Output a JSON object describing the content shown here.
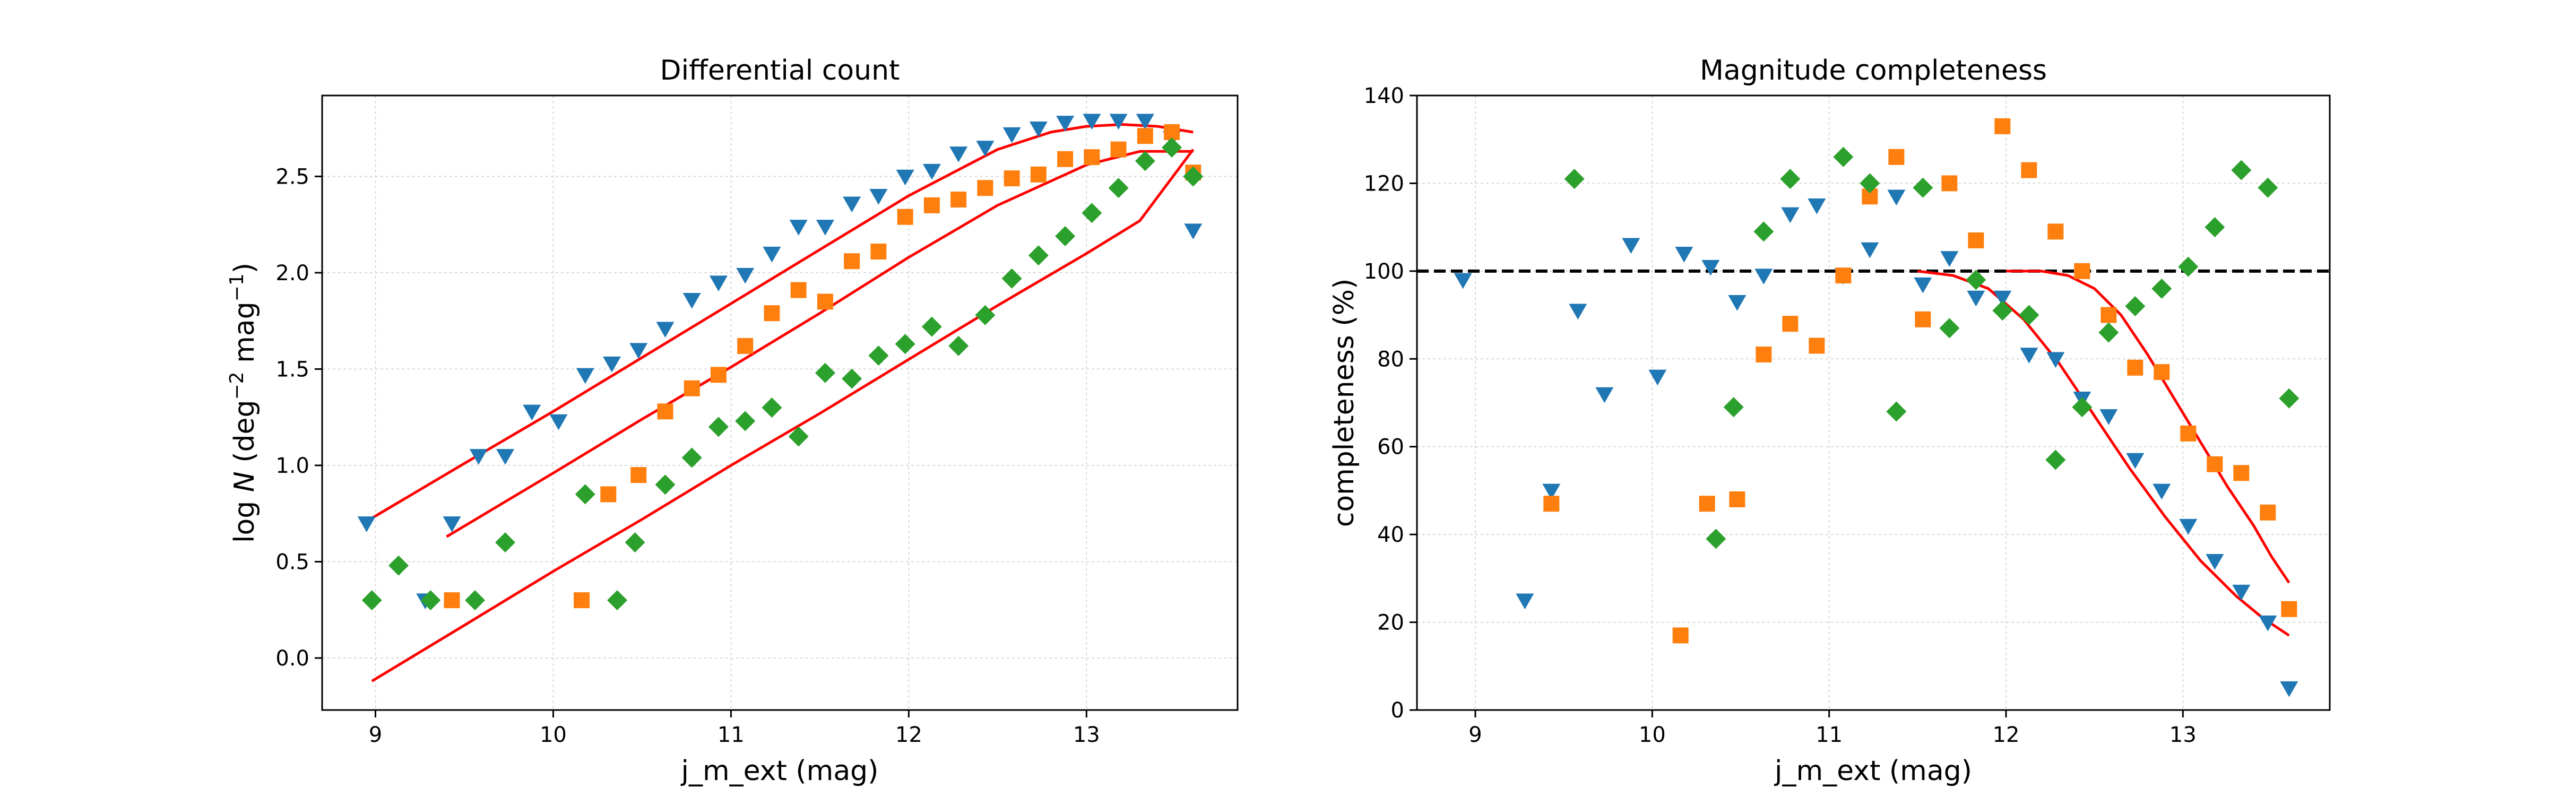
{
  "colors": {
    "series_blue": "#1f77b4",
    "series_orange": "#ff7f0e",
    "series_green": "#2ca02c",
    "fit": "#ff0000",
    "reference_line": "#000000",
    "grid": "#d9d9d9"
  },
  "chart_data": [
    {
      "type": "scatter",
      "title": "Differential count",
      "xlabel": "j_m_ext (mag)",
      "ylabel_parts": {
        "prefix": "log ",
        "var": "N",
        "open": " (deg",
        "exp1": "−2",
        "mid": " mag",
        "exp2": "−1",
        "close": ")"
      },
      "xlim": [
        8.7,
        13.85
      ],
      "ylim": [
        -0.27,
        2.92
      ],
      "xticks": [
        9,
        10,
        11,
        12,
        13
      ],
      "yticks": [
        0.0,
        0.5,
        1.0,
        1.5,
        2.0,
        2.5
      ],
      "ytick_labels": [
        "0.0",
        "0.5",
        "1.0",
        "1.5",
        "2.0",
        "2.5"
      ],
      "grid": true,
      "series": [
        {
          "marker": "triangle-down",
          "color": "#1f77b4",
          "x": [
            8.95,
            9.28,
            9.43,
            9.58,
            9.73,
            9.88,
            10.03,
            10.18,
            10.33,
            10.48,
            10.63,
            10.78,
            10.93,
            11.08,
            11.23,
            11.38,
            11.53,
            11.68,
            11.83,
            11.98,
            12.13,
            12.28,
            12.43,
            12.58,
            12.73,
            12.88,
            13.03,
            13.18,
            13.33,
            13.48,
            13.6
          ],
          "y": [
            0.7,
            0.3,
            0.7,
            1.05,
            1.05,
            1.28,
            1.23,
            1.47,
            1.53,
            1.6,
            1.71,
            1.86,
            1.95,
            1.99,
            2.1,
            2.24,
            2.24,
            2.36,
            2.4,
            2.5,
            2.53,
            2.62,
            2.65,
            2.72,
            2.75,
            2.78,
            2.79,
            2.79,
            2.79,
            2.7,
            2.22
          ]
        },
        {
          "marker": "square",
          "color": "#ff7f0e",
          "x": [
            9.43,
            10.16,
            10.31,
            10.48,
            10.63,
            10.78,
            10.93,
            11.08,
            11.23,
            11.38,
            11.53,
            11.68,
            11.83,
            11.98,
            12.13,
            12.28,
            12.43,
            12.58,
            12.73,
            12.88,
            13.03,
            13.18,
            13.33,
            13.48,
            13.6
          ],
          "y": [
            0.3,
            0.3,
            0.85,
            0.95,
            1.28,
            1.4,
            1.47,
            1.62,
            1.79,
            1.91,
            1.85,
            2.06,
            2.11,
            2.29,
            2.35,
            2.38,
            2.44,
            2.49,
            2.51,
            2.59,
            2.6,
            2.64,
            2.71,
            2.73,
            2.52
          ]
        },
        {
          "marker": "diamond",
          "color": "#2ca02c",
          "x": [
            8.98,
            9.13,
            9.31,
            9.56,
            9.73,
            10.18,
            10.36,
            10.46,
            10.63,
            10.78,
            10.93,
            11.08,
            11.23,
            11.38,
            11.53,
            11.68,
            11.83,
            11.98,
            12.13,
            12.28,
            12.43,
            12.58,
            12.73,
            12.88,
            13.03,
            13.18,
            13.33,
            13.48,
            13.6
          ],
          "y": [
            0.3,
            0.48,
            0.3,
            0.3,
            0.6,
            0.85,
            0.3,
            0.6,
            0.9,
            1.04,
            1.2,
            1.23,
            1.3,
            1.15,
            1.48,
            1.45,
            1.57,
            1.63,
            1.72,
            1.62,
            1.78,
            1.97,
            2.09,
            2.19,
            2.31,
            2.44,
            2.58,
            2.65,
            2.5
          ]
        }
      ],
      "fit_curves": [
        {
          "color": "#ff0000",
          "x": [
            8.95,
            9.5,
            10.0,
            10.5,
            11.0,
            11.5,
            12.0,
            12.5,
            12.8,
            13.0,
            13.2,
            13.4,
            13.6
          ],
          "y": [
            0.71,
            1.01,
            1.28,
            1.56,
            1.84,
            2.12,
            2.4,
            2.64,
            2.73,
            2.76,
            2.77,
            2.76,
            2.73
          ]
        },
        {
          "color": "#ff0000",
          "x": [
            9.4,
            10.0,
            10.5,
            11.0,
            11.5,
            12.0,
            12.5,
            13.0,
            13.3,
            13.6
          ],
          "y": [
            0.63,
            0.96,
            1.24,
            1.51,
            1.79,
            2.08,
            2.35,
            2.56,
            2.63,
            2.63
          ]
        },
        {
          "color": "#ff0000",
          "x": [
            8.98,
            9.5,
            10.0,
            10.5,
            11.0,
            11.5,
            12.0,
            12.5,
            13.0,
            13.3,
            13.6
          ],
          "y": [
            -0.12,
            0.17,
            0.45,
            0.72,
            1.0,
            1.27,
            1.55,
            1.83,
            2.1,
            2.27,
            2.64
          ]
        }
      ]
    },
    {
      "type": "scatter",
      "title": "Magnitude completeness",
      "xlabel": "j_m_ext (mag)",
      "ylabel": "completeness (%)",
      "xlim": [
        8.67,
        13.83
      ],
      "ylim": [
        0,
        140
      ],
      "xticks": [
        9,
        10,
        11,
        12,
        13
      ],
      "yticks": [
        0,
        20,
        40,
        60,
        80,
        100,
        120,
        140
      ],
      "reference_line_y": 100,
      "grid": true,
      "series": [
        {
          "marker": "triangle-down",
          "color": "#1f77b4",
          "x": [
            8.93,
            9.28,
            9.43,
            9.58,
            9.73,
            9.88,
            10.03,
            10.18,
            10.33,
            10.48,
            10.63,
            10.78,
            10.93,
            11.08,
            11.23,
            11.38,
            11.53,
            11.68,
            11.83,
            11.98,
            12.13,
            12.28,
            12.43,
            12.58,
            12.73,
            12.88,
            13.03,
            13.18,
            13.33,
            13.48,
            13.6
          ],
          "y": [
            98,
            25,
            50,
            91,
            72,
            106,
            76,
            104,
            101,
            93,
            99,
            113,
            115,
            99,
            105,
            117,
            97,
            103,
            94,
            94,
            81,
            80,
            71,
            67,
            57,
            50,
            42,
            34,
            27,
            20,
            5
          ]
        },
        {
          "marker": "square",
          "color": "#ff7f0e",
          "x": [
            9.43,
            10.16,
            10.31,
            10.48,
            10.63,
            10.78,
            10.93,
            11.08,
            11.23,
            11.38,
            11.53,
            11.68,
            11.83,
            11.98,
            12.13,
            12.28,
            12.43,
            12.58,
            12.73,
            12.88,
            13.03,
            13.18,
            13.33,
            13.48,
            13.6
          ],
          "y": [
            47,
            17,
            47,
            48,
            81,
            88,
            83,
            99,
            117,
            126,
            89,
            120,
            107,
            133,
            123,
            109,
            100,
            90,
            78,
            77,
            63,
            56,
            54,
            45,
            23
          ]
        },
        {
          "marker": "diamond",
          "color": "#2ca02c",
          "x": [
            9.56,
            10.36,
            10.46,
            10.63,
            10.78,
            11.08,
            11.23,
            11.38,
            11.53,
            11.68,
            11.83,
            11.98,
            12.13,
            12.28,
            12.43,
            12.58,
            12.73,
            12.88,
            13.03,
            13.18,
            13.33,
            13.48,
            13.6
          ],
          "y": [
            121,
            39,
            69,
            109,
            121,
            126,
            120,
            68,
            119,
            87,
            98,
            91,
            90,
            57,
            69,
            86,
            92,
            96,
            101,
            110,
            123,
            119,
            71
          ]
        }
      ],
      "fit_curves": [
        {
          "color": "#ff0000",
          "x": [
            11.5,
            11.7,
            11.9,
            12.1,
            12.3,
            12.5,
            12.7,
            12.9,
            13.1,
            13.3,
            13.45,
            13.6
          ],
          "y": [
            100,
            99,
            96,
            89,
            79,
            67,
            55,
            44,
            34,
            26,
            21,
            17
          ]
        },
        {
          "color": "#ff0000",
          "x": [
            12.0,
            12.2,
            12.35,
            12.5,
            12.65,
            12.8,
            12.95,
            13.1,
            13.25,
            13.4,
            13.5,
            13.6
          ],
          "y": [
            100,
            100,
            99,
            96,
            90,
            81,
            71,
            61,
            51,
            42,
            35,
            29
          ]
        }
      ]
    }
  ]
}
